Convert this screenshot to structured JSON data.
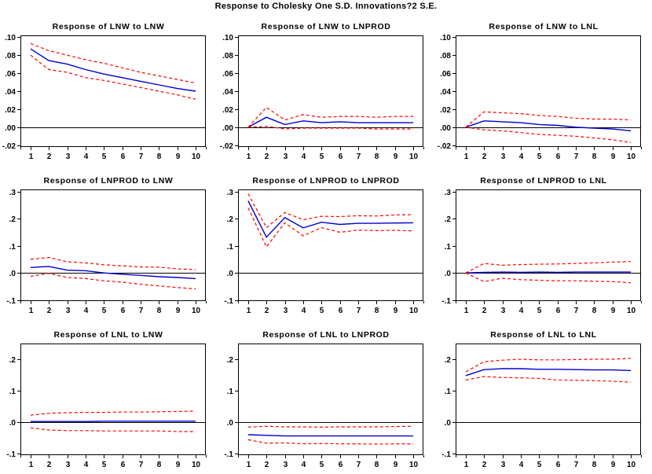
{
  "page_title": "Response to Cholesky One S.D. Innovations?2 S.E.",
  "colors": {
    "response_line": "#0000cc",
    "band_line": "#ff0000",
    "axis": "#000000",
    "background": "#ffffff"
  },
  "chart_data": [
    {
      "type": "line",
      "title": "Response of LNW to LNW",
      "x": [
        1,
        2,
        3,
        4,
        5,
        6,
        7,
        8,
        9,
        10
      ],
      "xlim": [
        0.45,
        10.55
      ],
      "xticks": [
        1,
        2,
        3,
        4,
        5,
        6,
        7,
        8,
        9,
        10
      ],
      "ylim": [
        -0.022,
        0.102
      ],
      "yticks": [
        {
          "v": 0.1,
          "label": ".10"
        },
        {
          "v": 0.08,
          "label": ".08"
        },
        {
          "v": 0.06,
          "label": ".06"
        },
        {
          "v": 0.04,
          "label": ".04"
        },
        {
          "v": 0.02,
          "label": ".02"
        },
        {
          "v": 0.0,
          "label": ".00"
        },
        {
          "v": -0.02,
          "label": "-.02"
        }
      ],
      "series": [
        {
          "name": "response",
          "color": "#0000cc",
          "style": "solid",
          "values": [
            0.087,
            0.074,
            0.07,
            0.064,
            0.059,
            0.055,
            0.051,
            0.047,
            0.043,
            0.04
          ]
        },
        {
          "name": "upper-2se",
          "color": "#ff0000",
          "style": "dashed",
          "values": [
            0.093,
            0.085,
            0.08,
            0.075,
            0.071,
            0.066,
            0.061,
            0.057,
            0.053,
            0.049
          ]
        },
        {
          "name": "lower-2se",
          "color": "#ff0000",
          "style": "dashed",
          "values": [
            0.08,
            0.064,
            0.061,
            0.055,
            0.052,
            0.048,
            0.044,
            0.04,
            0.036,
            0.031
          ]
        }
      ]
    },
    {
      "type": "line",
      "title": "Response of LNW to LNPROD",
      "x": [
        1,
        2,
        3,
        4,
        5,
        6,
        7,
        8,
        9,
        10
      ],
      "xlim": [
        0.45,
        10.55
      ],
      "xticks": [
        1,
        2,
        3,
        4,
        5,
        6,
        7,
        8,
        9,
        10
      ],
      "ylim": [
        -0.022,
        0.102
      ],
      "yticks": [
        {
          "v": 0.1,
          "label": ".10"
        },
        {
          "v": 0.08,
          "label": ".08"
        },
        {
          "v": 0.06,
          "label": ".06"
        },
        {
          "v": 0.04,
          "label": ".04"
        },
        {
          "v": 0.02,
          "label": ".02"
        },
        {
          "v": 0.0,
          "label": ".00"
        },
        {
          "v": -0.02,
          "label": "-.02"
        }
      ],
      "series": [
        {
          "name": "response",
          "color": "#0000cc",
          "style": "solid",
          "values": [
            0.0,
            0.011,
            0.003,
            0.007,
            0.005,
            0.006,
            0.005,
            0.005,
            0.005,
            0.005
          ]
        },
        {
          "name": "upper-2se",
          "color": "#ff0000",
          "style": "dashed",
          "values": [
            0.0,
            0.022,
            0.008,
            0.014,
            0.011,
            0.012,
            0.012,
            0.011,
            0.012,
            0.012
          ]
        },
        {
          "name": "lower-2se",
          "color": "#ff0000",
          "style": "dashed",
          "values": [
            0.0,
            0.001,
            -0.002,
            -0.001,
            -0.001,
            -0.001,
            -0.001,
            -0.002,
            -0.002,
            -0.002
          ]
        }
      ]
    },
    {
      "type": "line",
      "title": "Response of LNW to LNL",
      "x": [
        1,
        2,
        3,
        4,
        5,
        6,
        7,
        8,
        9,
        10
      ],
      "xlim": [
        0.45,
        10.55
      ],
      "xticks": [
        1,
        2,
        3,
        4,
        5,
        6,
        7,
        8,
        9,
        10
      ],
      "ylim": [
        -0.022,
        0.102
      ],
      "yticks": [
        {
          "v": 0.1,
          "label": ".10"
        },
        {
          "v": 0.08,
          "label": ".08"
        },
        {
          "v": 0.06,
          "label": ".06"
        },
        {
          "v": 0.04,
          "label": ".04"
        },
        {
          "v": 0.02,
          "label": ".02"
        },
        {
          "v": 0.0,
          "label": ".00"
        },
        {
          "v": -0.02,
          "label": "-.02"
        }
      ],
      "series": [
        {
          "name": "response",
          "color": "#0000cc",
          "style": "solid",
          "values": [
            0.0,
            0.007,
            0.006,
            0.005,
            0.003,
            0.002,
            0.0,
            -0.001,
            -0.002,
            -0.004
          ]
        },
        {
          "name": "upper-2se",
          "color": "#ff0000",
          "style": "dashed",
          "values": [
            0.0,
            0.017,
            0.016,
            0.015,
            0.013,
            0.012,
            0.01,
            0.009,
            0.009,
            0.008
          ]
        },
        {
          "name": "lower-2se",
          "color": "#ff0000",
          "style": "dashed",
          "values": [
            0.0,
            -0.003,
            -0.004,
            -0.006,
            -0.008,
            -0.009,
            -0.01,
            -0.012,
            -0.014,
            -0.017
          ]
        }
      ]
    },
    {
      "type": "line",
      "title": "Response of LNPROD to LNW",
      "x": [
        1,
        2,
        3,
        4,
        5,
        6,
        7,
        8,
        9,
        10
      ],
      "xlim": [
        0.45,
        10.55
      ],
      "xticks": [
        1,
        2,
        3,
        4,
        5,
        6,
        7,
        8,
        9,
        10
      ],
      "ylim": [
        -0.104,
        0.308
      ],
      "yticks": [
        {
          "v": 0.3,
          "label": ".3"
        },
        {
          "v": 0.2,
          "label": ".2"
        },
        {
          "v": 0.1,
          "label": ".1"
        },
        {
          "v": 0.0,
          "label": ".0"
        },
        {
          "v": -0.1,
          "label": "-.1"
        }
      ],
      "series": [
        {
          "name": "response",
          "color": "#0000cc",
          "style": "solid",
          "values": [
            0.02,
            0.024,
            0.01,
            0.008,
            0.0,
            -0.005,
            -0.009,
            -0.014,
            -0.017,
            -0.021
          ]
        },
        {
          "name": "upper-2se",
          "color": "#ff0000",
          "style": "dashed",
          "values": [
            0.05,
            0.057,
            0.041,
            0.037,
            0.03,
            0.026,
            0.022,
            0.021,
            0.015,
            0.012
          ]
        },
        {
          "name": "lower-2se",
          "color": "#ff0000",
          "style": "dashed",
          "values": [
            -0.013,
            -0.002,
            -0.017,
            -0.021,
            -0.029,
            -0.034,
            -0.042,
            -0.048,
            -0.054,
            -0.059
          ]
        }
      ]
    },
    {
      "type": "line",
      "title": "Response of LNPROD to LNPROD",
      "x": [
        1,
        2,
        3,
        4,
        5,
        6,
        7,
        8,
        9,
        10
      ],
      "xlim": [
        0.45,
        10.55
      ],
      "xticks": [
        1,
        2,
        3,
        4,
        5,
        6,
        7,
        8,
        9,
        10
      ],
      "ylim": [
        -0.104,
        0.308
      ],
      "yticks": [
        {
          "v": 0.3,
          "label": ".3"
        },
        {
          "v": 0.2,
          "label": ".2"
        },
        {
          "v": 0.1,
          "label": ".1"
        },
        {
          "v": 0.0,
          "label": ".0"
        },
        {
          "v": -0.1,
          "label": "-.1"
        }
      ],
      "series": [
        {
          "name": "response",
          "color": "#0000cc",
          "style": "solid",
          "values": [
            0.266,
            0.132,
            0.204,
            0.166,
            0.187,
            0.179,
            0.183,
            0.183,
            0.184,
            0.185
          ]
        },
        {
          "name": "upper-2se",
          "color": "#ff0000",
          "style": "dashed",
          "values": [
            0.292,
            0.167,
            0.223,
            0.196,
            0.209,
            0.208,
            0.211,
            0.21,
            0.214,
            0.215
          ]
        },
        {
          "name": "lower-2se",
          "color": "#ff0000",
          "style": "dashed",
          "values": [
            0.24,
            0.096,
            0.185,
            0.137,
            0.167,
            0.15,
            0.158,
            0.156,
            0.157,
            0.155
          ]
        }
      ]
    },
    {
      "type": "line",
      "title": "Response of LNPROD to LNL",
      "x": [
        1,
        2,
        3,
        4,
        5,
        6,
        7,
        8,
        9,
        10
      ],
      "xlim": [
        0.45,
        10.55
      ],
      "xticks": [
        1,
        2,
        3,
        4,
        5,
        6,
        7,
        8,
        9,
        10
      ],
      "ylim": [
        -0.104,
        0.308
      ],
      "yticks": [
        {
          "v": 0.3,
          "label": ".3"
        },
        {
          "v": 0.2,
          "label": ".2"
        },
        {
          "v": 0.1,
          "label": ".1"
        },
        {
          "v": 0.0,
          "label": ".0"
        },
        {
          "v": -0.1,
          "label": "-.1"
        }
      ],
      "series": [
        {
          "name": "response",
          "color": "#0000cc",
          "style": "solid",
          "values": [
            0.0,
            0.002,
            0.003,
            0.002,
            0.003,
            0.002,
            0.003,
            0.003,
            0.003,
            0.003
          ]
        },
        {
          "name": "upper-2se",
          "color": "#ff0000",
          "style": "dashed",
          "values": [
            0.0,
            0.035,
            0.028,
            0.031,
            0.032,
            0.033,
            0.035,
            0.037,
            0.04,
            0.042
          ]
        },
        {
          "name": "lower-2se",
          "color": "#ff0000",
          "style": "dashed",
          "values": [
            0.0,
            -0.032,
            -0.02,
            -0.025,
            -0.027,
            -0.029,
            -0.029,
            -0.031,
            -0.032,
            -0.037
          ]
        }
      ]
    },
    {
      "type": "line",
      "title": "Response of LNL to LNW",
      "x": [
        1,
        2,
        3,
        4,
        5,
        6,
        7,
        8,
        9,
        10
      ],
      "xlim": [
        0.45,
        10.55
      ],
      "xticks": [
        1,
        2,
        3,
        4,
        5,
        6,
        7,
        8,
        9,
        10
      ],
      "ylim": [
        -0.105,
        0.25
      ],
      "yticks": [
        {
          "v": 0.2,
          "label": ".2"
        },
        {
          "v": 0.1,
          "label": ".1"
        },
        {
          "v": 0.0,
          "label": ".0"
        },
        {
          "v": -0.1,
          "label": "-.1"
        }
      ],
      "series": [
        {
          "name": "response",
          "color": "#0000cc",
          "style": "solid",
          "values": [
            0.002,
            0.002,
            0.002,
            0.002,
            0.003,
            0.003,
            0.003,
            0.003,
            0.003,
            0.003
          ]
        },
        {
          "name": "upper-2se",
          "color": "#ff0000",
          "style": "dashed",
          "values": [
            0.022,
            0.028,
            0.03,
            0.031,
            0.031,
            0.032,
            0.032,
            0.033,
            0.034,
            0.035
          ]
        },
        {
          "name": "lower-2se",
          "color": "#ff0000",
          "style": "dashed",
          "values": [
            -0.018,
            -0.025,
            -0.027,
            -0.027,
            -0.028,
            -0.028,
            -0.028,
            -0.028,
            -0.03,
            -0.03
          ]
        }
      ]
    },
    {
      "type": "line",
      "title": "Response of LNL to LNPROD",
      "x": [
        1,
        2,
        3,
        4,
        5,
        6,
        7,
        8,
        9,
        10
      ],
      "xlim": [
        0.45,
        10.55
      ],
      "xticks": [
        1,
        2,
        3,
        4,
        5,
        6,
        7,
        8,
        9,
        10
      ],
      "ylim": [
        -0.105,
        0.25
      ],
      "yticks": [
        {
          "v": 0.2,
          "label": ".2"
        },
        {
          "v": 0.1,
          "label": ".1"
        },
        {
          "v": 0.0,
          "label": ".0"
        },
        {
          "v": -0.1,
          "label": "-.1"
        }
      ],
      "series": [
        {
          "name": "response",
          "color": "#0000cc",
          "style": "solid",
          "values": [
            -0.04,
            -0.042,
            -0.044,
            -0.044,
            -0.044,
            -0.044,
            -0.044,
            -0.044,
            -0.044,
            -0.044
          ]
        },
        {
          "name": "upper-2se",
          "color": "#ff0000",
          "style": "dashed",
          "values": [
            -0.016,
            -0.013,
            -0.015,
            -0.015,
            -0.016,
            -0.015,
            -0.015,
            -0.015,
            -0.014,
            -0.013
          ]
        },
        {
          "name": "lower-2se",
          "color": "#ff0000",
          "style": "dashed",
          "values": [
            -0.056,
            -0.067,
            -0.066,
            -0.069,
            -0.068,
            -0.069,
            -0.069,
            -0.07,
            -0.069,
            -0.069
          ]
        }
      ]
    },
    {
      "type": "line",
      "title": "Response of LNL to LNL",
      "x": [
        1,
        2,
        3,
        4,
        5,
        6,
        7,
        8,
        9,
        10
      ],
      "xlim": [
        0.45,
        10.55
      ],
      "xticks": [
        1,
        2,
        3,
        4,
        5,
        6,
        7,
        8,
        9,
        10
      ],
      "ylim": [
        -0.105,
        0.25
      ],
      "yticks": [
        {
          "v": 0.2,
          "label": ".2"
        },
        {
          "v": 0.1,
          "label": ".1"
        },
        {
          "v": 0.0,
          "label": ".0"
        },
        {
          "v": -0.1,
          "label": "-.1"
        }
      ],
      "series": [
        {
          "name": "response",
          "color": "#0000cc",
          "style": "solid",
          "values": [
            0.148,
            0.167,
            0.17,
            0.17,
            0.168,
            0.168,
            0.167,
            0.166,
            0.166,
            0.164
          ]
        },
        {
          "name": "upper-2se",
          "color": "#ff0000",
          "style": "dashed",
          "values": [
            0.16,
            0.192,
            0.197,
            0.2,
            0.198,
            0.198,
            0.199,
            0.2,
            0.2,
            0.203
          ]
        },
        {
          "name": "lower-2se",
          "color": "#ff0000",
          "style": "dashed",
          "values": [
            0.134,
            0.145,
            0.142,
            0.141,
            0.139,
            0.134,
            0.133,
            0.132,
            0.13,
            0.127
          ]
        }
      ]
    }
  ]
}
